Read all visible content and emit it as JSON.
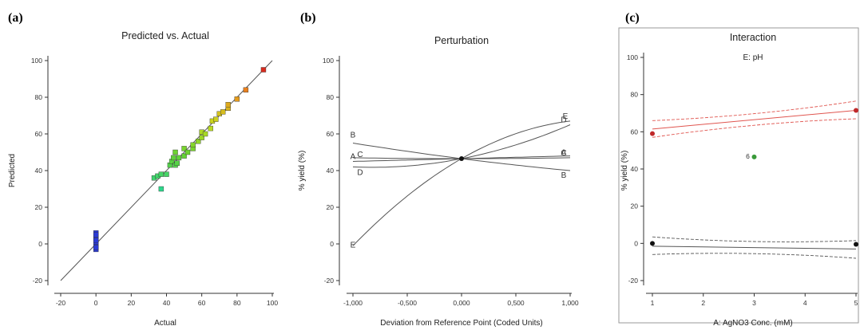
{
  "panel_labels": {
    "a": "(a)",
    "b": "(b)",
    "c": "(c)"
  },
  "colors": {
    "axis": "#333333",
    "line": "#555555",
    "red_band": "#e0554f",
    "grey_band": "#666666"
  },
  "chart_data": [
    {
      "type": "scatter",
      "title": "Predicted vs. Actual",
      "xlabel": "Actual",
      "ylabel": "Predicted",
      "xlim": [
        -20,
        100
      ],
      "ylim": [
        -20,
        100
      ],
      "xticks": [
        -20,
        0,
        20,
        40,
        60,
        80,
        100
      ],
      "yticks": [
        -20,
        0,
        20,
        40,
        60,
        80,
        100
      ],
      "reference_line": [
        [
          -20,
          -20
        ],
        [
          100,
          100
        ]
      ],
      "points": [
        {
          "x": 0,
          "y": 6
        },
        {
          "x": 0,
          "y": 4.5
        },
        {
          "x": 0,
          "y": 3
        },
        {
          "x": 0,
          "y": 1.5
        },
        {
          "x": 0,
          "y": 0
        },
        {
          "x": 0,
          "y": -1.5
        },
        {
          "x": 0,
          "y": -3
        },
        {
          "x": 0,
          "y": 2
        },
        {
          "x": 0,
          "y": -2
        },
        {
          "x": 0,
          "y": 5
        },
        {
          "x": 33,
          "y": 36
        },
        {
          "x": 35,
          "y": 37
        },
        {
          "x": 37,
          "y": 30
        },
        {
          "x": 37,
          "y": 38
        },
        {
          "x": 40,
          "y": 38
        },
        {
          "x": 42,
          "y": 43
        },
        {
          "x": 43,
          "y": 45
        },
        {
          "x": 44,
          "y": 47
        },
        {
          "x": 45,
          "y": 43
        },
        {
          "x": 45,
          "y": 50
        },
        {
          "x": 46,
          "y": 44
        },
        {
          "x": 47,
          "y": 47
        },
        {
          "x": 50,
          "y": 48
        },
        {
          "x": 50,
          "y": 52
        },
        {
          "x": 52,
          "y": 50
        },
        {
          "x": 55,
          "y": 52
        },
        {
          "x": 55,
          "y": 54
        },
        {
          "x": 58,
          "y": 56
        },
        {
          "x": 60,
          "y": 58
        },
        {
          "x": 60,
          "y": 61
        },
        {
          "x": 62,
          "y": 60
        },
        {
          "x": 65,
          "y": 63
        },
        {
          "x": 66,
          "y": 67
        },
        {
          "x": 68,
          "y": 68
        },
        {
          "x": 70,
          "y": 71
        },
        {
          "x": 72,
          "y": 72
        },
        {
          "x": 75,
          "y": 74
        },
        {
          "x": 75,
          "y": 76
        },
        {
          "x": 80,
          "y": 79
        },
        {
          "x": 85,
          "y": 84
        },
        {
          "x": 95,
          "y": 95
        }
      ]
    },
    {
      "type": "line",
      "title": "Perturbation",
      "xlabel": "Deviation from Reference Point (Coded Units)",
      "ylabel": "% yield (%)",
      "xlim": [
        -1,
        1
      ],
      "ylim": [
        -20,
        100
      ],
      "xtick_labels": [
        "-1,000",
        "-0,500",
        "0,000",
        "0,500",
        "1,000"
      ],
      "xticks": [
        -1,
        -0.5,
        0,
        0.5,
        1
      ],
      "yticks": [
        -20,
        0,
        20,
        40,
        60,
        80,
        100
      ],
      "reference_point": {
        "x": 0,
        "y": 46.5
      },
      "series": [
        {
          "name": "A",
          "x": [
            -1,
            0,
            1
          ],
          "y": [
            45,
            46.5,
            48
          ]
        },
        {
          "name": "B",
          "x": [
            -1,
            0,
            1
          ],
          "y": [
            55,
            46.5,
            40
          ]
        },
        {
          "name": "C",
          "x": [
            -1,
            0,
            1
          ],
          "y": [
            47,
            46.5,
            47
          ]
        },
        {
          "name": "D",
          "x": [
            -1,
            0,
            1
          ],
          "y": [
            42,
            46.5,
            65
          ]
        },
        {
          "name": "E",
          "x": [
            -1,
            0,
            1
          ],
          "y": [
            -1,
            46.5,
            67
          ]
        }
      ]
    },
    {
      "type": "line",
      "title": "Interaction",
      "subtitle": "E: pH",
      "xlabel": "A: AgNO3 Conc. (mM)",
      "ylabel": "% yield (%)",
      "xlim": [
        1,
        5
      ],
      "ylim": [
        -20,
        100
      ],
      "xticks": [
        1,
        2,
        3,
        4,
        5
      ],
      "yticks": [
        -20,
        0,
        20,
        40,
        60,
        80,
        100
      ],
      "series": [
        {
          "color": "#e0554f",
          "x": [
            1,
            5
          ],
          "y": [
            61.5,
            71.5
          ],
          "band_upper": [
            66,
            76.5
          ],
          "band_lower": [
            57,
            67
          ],
          "points": [
            {
              "x": 1,
              "y": 59
            },
            {
              "x": 5,
              "y": 71.5
            }
          ]
        },
        {
          "color": "#555555",
          "x": [
            1,
            5
          ],
          "y": [
            -1.5,
            -3
          ],
          "band_upper": [
            3.5,
            1.5
          ],
          "band_lower": [
            -6,
            -8
          ],
          "points": [
            {
              "x": 1,
              "y": 0
            },
            {
              "x": 5,
              "y": -0.5
            }
          ]
        }
      ],
      "center_point": {
        "x": 3,
        "y": 46.5,
        "color": "#3a9a3a",
        "label": "6"
      }
    }
  ]
}
